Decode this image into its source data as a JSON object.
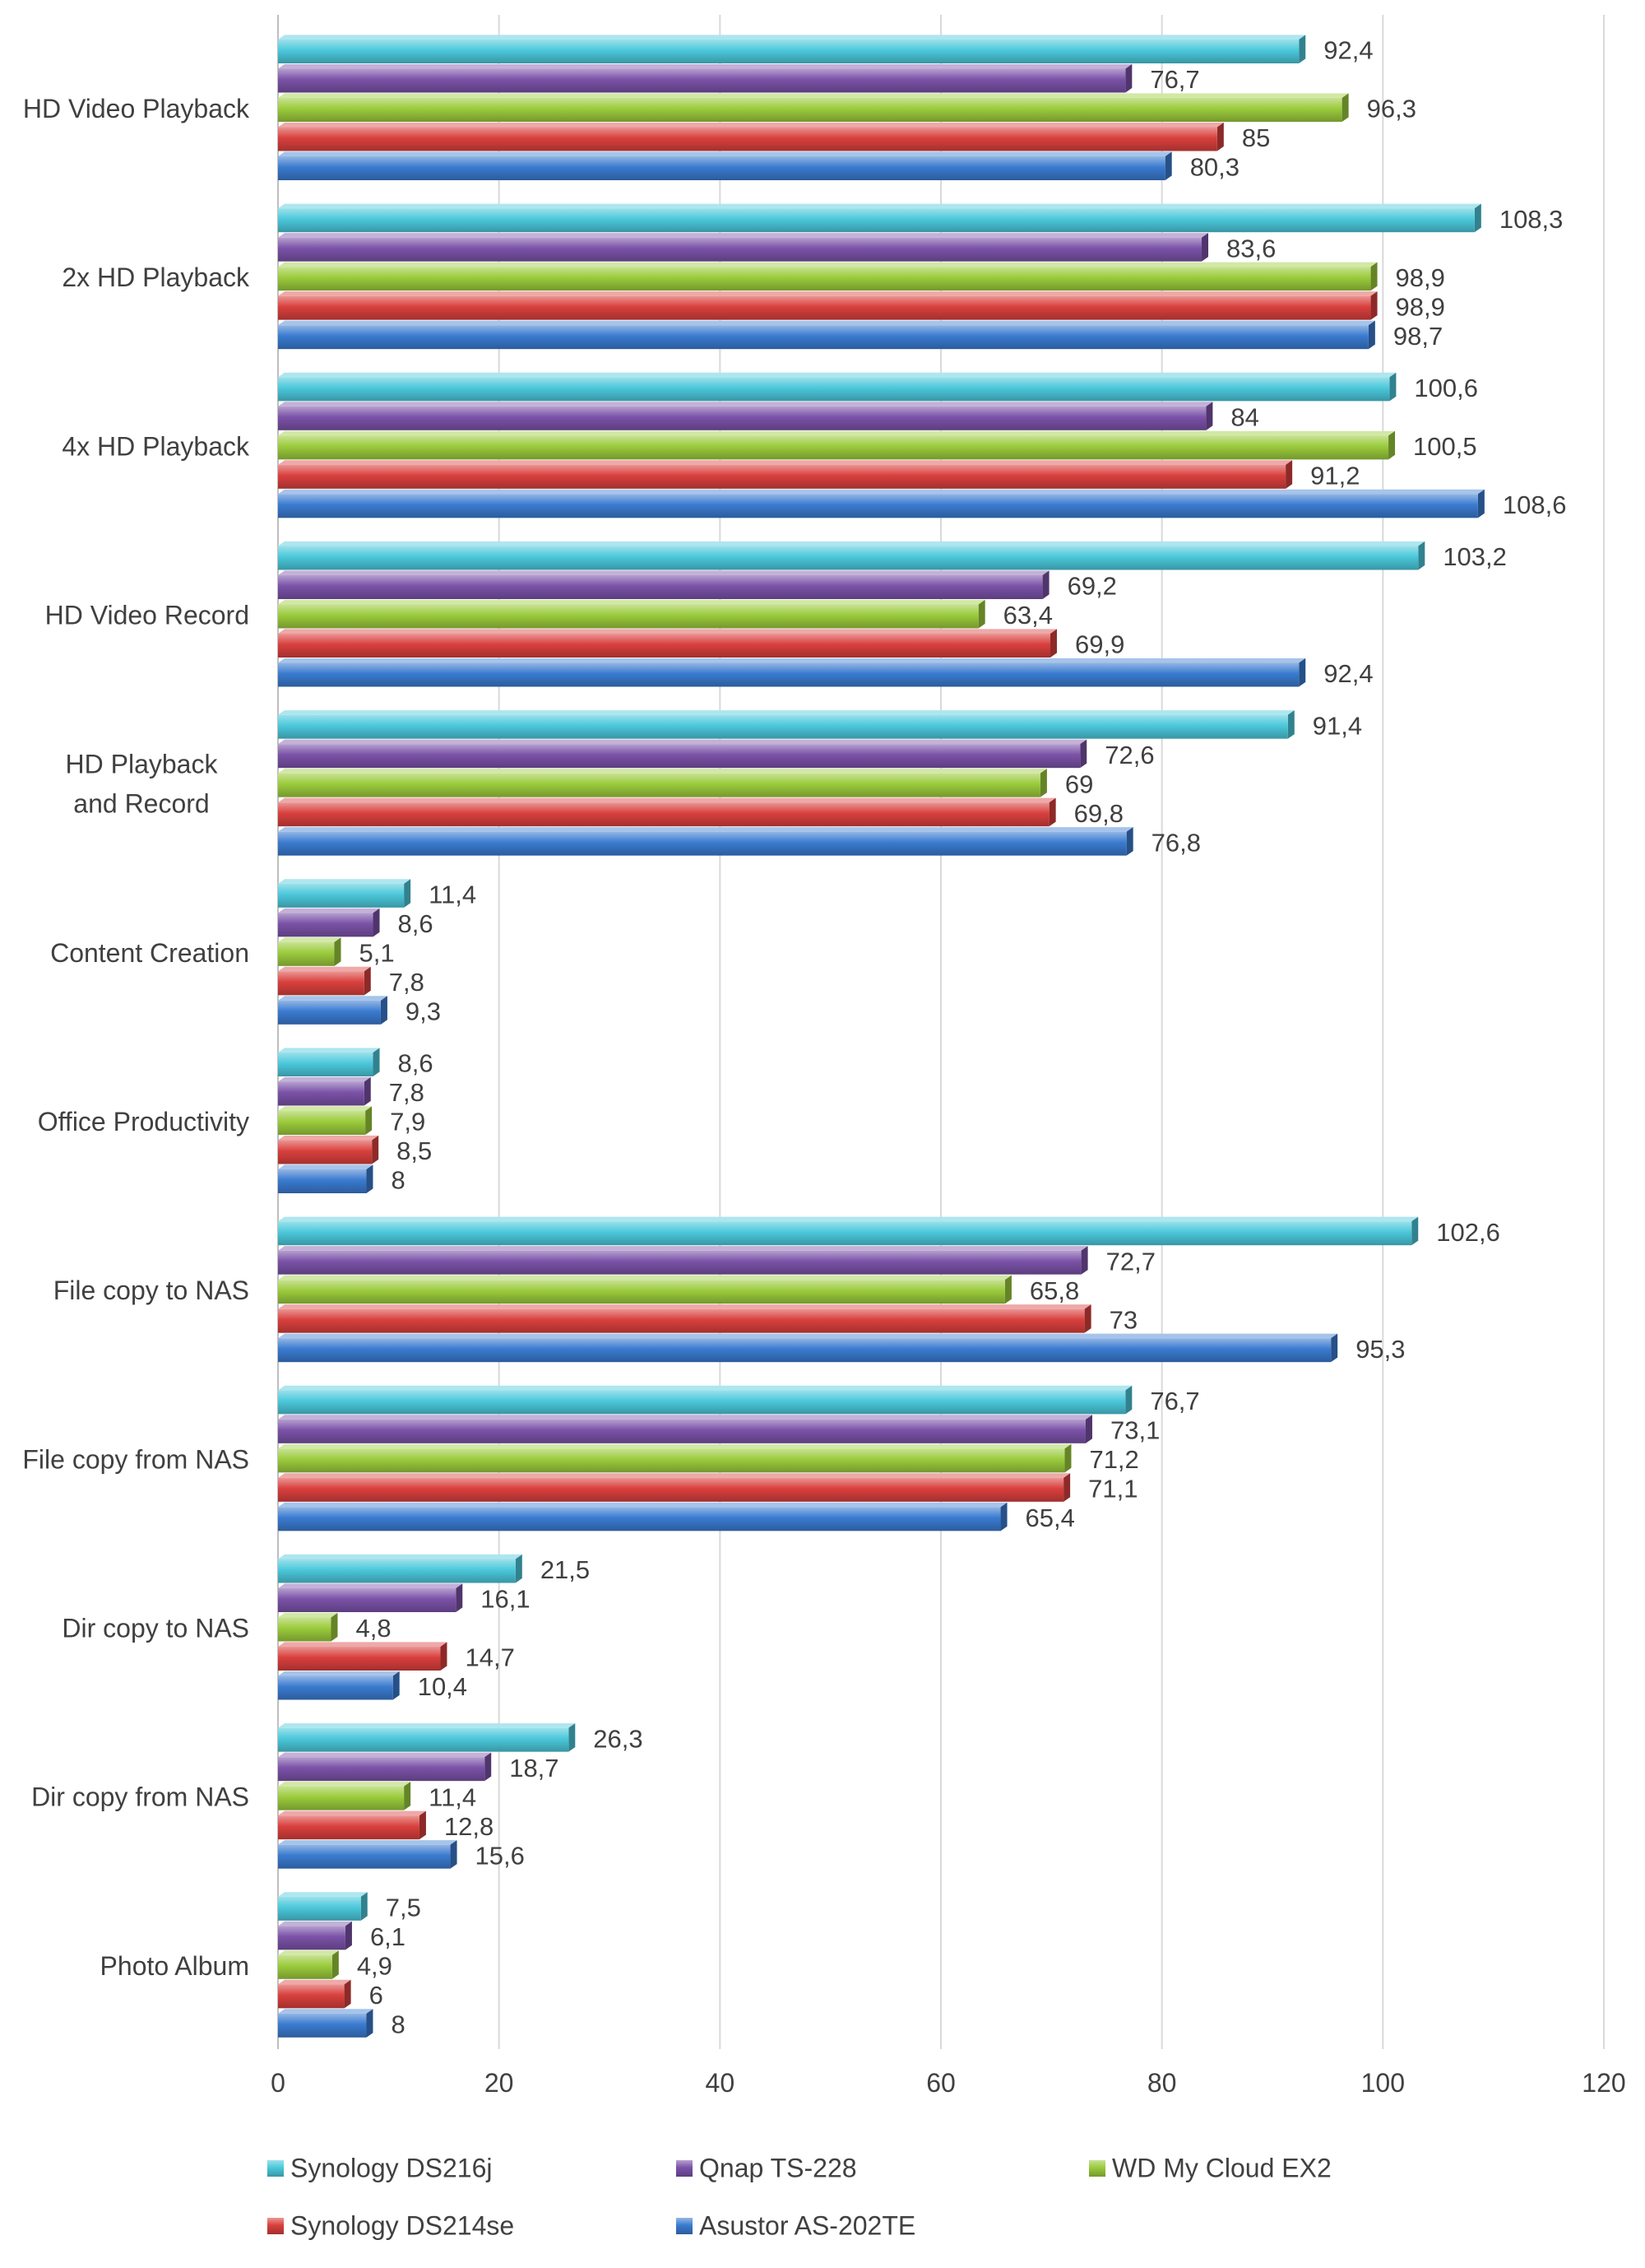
{
  "chart_data": {
    "type": "bar",
    "orientation": "horizontal",
    "categories": [
      "HD Video Playback",
      "2x HD Playback",
      "4x HD Playback",
      "HD Video Record",
      "HD Playback and Record",
      "Content Creation",
      "Office Productivity",
      "File copy to NAS",
      "File copy from NAS",
      "Dir copy to NAS",
      "Dir copy from NAS",
      "Photo Album"
    ],
    "series": [
      {
        "name": "Synology DS216j",
        "color": "#4BC8DB",
        "values": [
          92.4,
          108.3,
          100.6,
          103.2,
          91.4,
          11.4,
          8.6,
          102.6,
          76.7,
          21.5,
          26.3,
          7.5
        ],
        "labels": [
          "92,4",
          "108,3",
          "100,6",
          "103,2",
          "91,4",
          "11,4",
          "8,6",
          "102,6",
          "76,7",
          "21,5",
          "26,3",
          "7,5"
        ]
      },
      {
        "name": "Qnap TS-228",
        "color": "#7B52A8",
        "values": [
          76.7,
          83.6,
          84,
          69.2,
          72.6,
          8.6,
          7.8,
          72.7,
          73.1,
          16.1,
          18.7,
          6.1
        ],
        "labels": [
          "76,7",
          "83,6",
          "84",
          "69,2",
          "72,6",
          "8,6",
          "7,8",
          "72,7",
          "73,1",
          "16,1",
          "18,7",
          "6,1"
        ]
      },
      {
        "name": "WD My Cloud EX2",
        "color": "#9BCB3C",
        "values": [
          96.3,
          98.9,
          100.5,
          63.4,
          69,
          5.1,
          7.9,
          65.8,
          71.2,
          4.8,
          11.4,
          4.9
        ],
        "labels": [
          "96,3",
          "98,9",
          "100,5",
          "63,4",
          "69",
          "5,1",
          "7,9",
          "65,8",
          "71,2",
          "4,8",
          "11,4",
          "4,9"
        ]
      },
      {
        "name": "Synology DS214se",
        "color": "#D9403D",
        "values": [
          85,
          98.9,
          91.2,
          69.9,
          69.8,
          7.8,
          8.5,
          73,
          71.1,
          14.7,
          12.8,
          6
        ],
        "labels": [
          "85",
          "98,9",
          "91,2",
          "69,9",
          "69,8",
          "7,8",
          "8,5",
          "73",
          "71,1",
          "14,7",
          "12,8",
          "6"
        ]
      },
      {
        "name": "Asustor AS-202TE",
        "color": "#3A7BD0",
        "values": [
          80.3,
          98.7,
          108.6,
          92.4,
          76.8,
          9.3,
          8,
          95.3,
          65.4,
          10.4,
          15.6,
          8
        ],
        "labels": [
          "80,3",
          "98,7",
          "108,6",
          "92,4",
          "76,8",
          "9,3",
          "8",
          "95,3",
          "65,4",
          "10,4",
          "15,6",
          "8"
        ]
      }
    ],
    "xlim": [
      0,
      120
    ],
    "x_ticks": [
      0,
      20,
      40,
      60,
      80,
      100,
      120
    ],
    "x_tick_labels": [
      "0",
      "20",
      "40",
      "60",
      "80",
      "100",
      "120"
    ],
    "grid": "vertical",
    "legend_position": "bottom",
    "title": "",
    "xlabel": "",
    "ylabel": ""
  }
}
